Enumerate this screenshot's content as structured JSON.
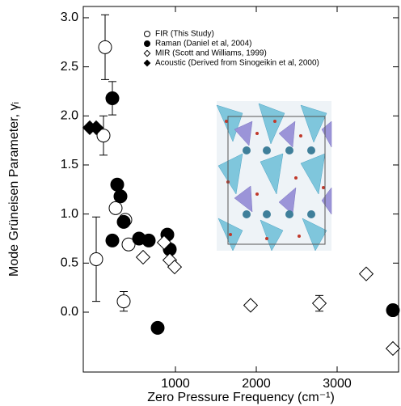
{
  "chart_data": {
    "type": "scatter",
    "x_label": "Zero Pressure Frequency (cm⁻¹)",
    "y_label": "Mode Grüneisen Parameter, γᵢ",
    "xlim": [
      -140,
      3760
    ],
    "ylim": [
      -0.61,
      3.115
    ],
    "xticks": [
      1000,
      2000,
      3000
    ],
    "yticks": [
      {
        "value": 0,
        "label": "0.0"
      },
      {
        "value": 0.5,
        "label": "0.5"
      },
      {
        "value": 1,
        "label": "1.0"
      },
      {
        "value": 1.5,
        "label": "1.5"
      },
      {
        "value": 2,
        "label": "2.0"
      },
      {
        "value": 2.5,
        "label": "2.5"
      },
      {
        "value": 3,
        "label": "3.0"
      }
    ],
    "legend": "top-left",
    "series": [
      {
        "name": "FIR (This Study)",
        "marker": "circle-open",
        "color": "#000000",
        "x": [
          130,
          110,
          260,
          380,
          420,
          20,
          360
        ],
        "values": [
          2.7,
          1.8,
          1.06,
          0.94,
          0.69,
          0.54,
          0.11
        ],
        "errors": [
          0.33,
          0.2,
          null,
          null,
          null,
          0.43,
          0.1
        ]
      },
      {
        "name": "Raman (Daniel et al, 2004)",
        "marker": "circle-filled",
        "color": "#000000",
        "x": [
          220,
          280,
          320,
          220,
          360,
          550,
          670,
          780,
          900,
          930,
          3690
        ],
        "values": [
          2.18,
          1.3,
          1.18,
          0.73,
          0.92,
          0.75,
          0.73,
          -0.16,
          0.79,
          0.64,
          0.02
        ],
        "errors": [
          0.17,
          null,
          null,
          null,
          null,
          null,
          null,
          null,
          null,
          null,
          null
        ]
      },
      {
        "name": "MIR (Scott and Williams, 1999)",
        "marker": "diamond-open",
        "color": "#000000",
        "x": [
          600,
          860,
          930,
          990,
          1930,
          2780,
          3360,
          3690
        ],
        "values": [
          0.56,
          0.71,
          0.53,
          0.46,
          0.07,
          0.09,
          0.39,
          -0.37
        ],
        "errors": [
          null,
          null,
          null,
          null,
          null,
          0.08,
          null,
          null
        ]
      },
      {
        "name": "Acoustic (Derived from Sinogeikin et al, 2000)",
        "marker": "diamond-filled",
        "color": "#000000",
        "x": [
          -60,
          20
        ],
        "values": [
          1.88,
          1.88
        ],
        "errors": [
          null,
          null
        ]
      }
    ]
  }
}
